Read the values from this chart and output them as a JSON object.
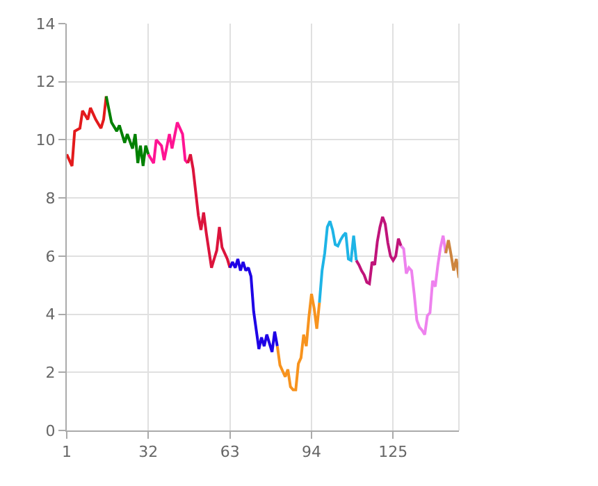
{
  "chart_data": {
    "type": "line",
    "xlim": [
      1,
      150
    ],
    "xticks": [
      1,
      32,
      63,
      94,
      125
    ],
    "ylim": [
      0,
      14
    ],
    "yticks": [
      0,
      2,
      4,
      6,
      8,
      10,
      12,
      14
    ],
    "grid": true,
    "marker": "none",
    "line_style": "solid",
    "series": [
      {
        "color": "#e31a1c",
        "x": [
          1,
          3,
          4,
          6,
          7,
          9,
          10,
          12,
          14,
          15,
          16
        ],
        "values": [
          9.5,
          9.1,
          10.3,
          10.4,
          11.0,
          10.7,
          11.1,
          10.7,
          10.4,
          10.7,
          11.5
        ]
      },
      {
        "color": "#008000",
        "x": [
          16,
          18,
          20,
          21,
          23,
          24,
          26,
          27,
          28,
          29,
          30,
          31,
          32
        ],
        "values": [
          11.5,
          10.6,
          10.3,
          10.5,
          9.9,
          10.2,
          9.7,
          10.2,
          9.2,
          9.8,
          9.1,
          9.8,
          9.5
        ]
      },
      {
        "color": "#ff1493",
        "x": [
          32,
          34,
          35,
          37,
          38,
          40,
          41,
          43,
          45,
          46,
          47
        ],
        "values": [
          9.5,
          9.2,
          10.0,
          9.8,
          9.3,
          10.2,
          9.7,
          10.6,
          10.2,
          9.3,
          9.2
        ]
      },
      {
        "color": "#dc143c",
        "x": [
          47,
          48,
          49,
          50,
          51,
          52,
          53,
          54,
          55,
          56,
          57,
          58,
          59,
          60,
          62,
          63
        ],
        "values": [
          9.2,
          9.5,
          9.0,
          8.2,
          7.4,
          6.9,
          7.5,
          6.8,
          6.2,
          5.6,
          5.9,
          6.2,
          7.0,
          6.3,
          5.9,
          5.6
        ]
      },
      {
        "color": "#1e00e6",
        "x": [
          63,
          64,
          65,
          66,
          67,
          68,
          69,
          70,
          71,
          72,
          74,
          75,
          76,
          77,
          78,
          79,
          80,
          81
        ],
        "values": [
          5.6,
          5.8,
          5.6,
          5.9,
          5.5,
          5.8,
          5.5,
          5.6,
          5.3,
          4.1,
          2.8,
          3.2,
          2.9,
          3.3,
          3.0,
          2.7,
          3.4,
          2.9
        ]
      },
      {
        "color": "#f7931e",
        "x": [
          81,
          82,
          83,
          84,
          85,
          86,
          87,
          88,
          89,
          90,
          91,
          92,
          93,
          94,
          95,
          96,
          97
        ],
        "values": [
          2.9,
          2.25,
          2.05,
          1.85,
          2.1,
          1.5,
          1.4,
          1.4,
          2.3,
          2.5,
          3.3,
          2.9,
          3.9,
          4.7,
          4.2,
          3.5,
          4.4
        ]
      },
      {
        "color": "#1eb4e6",
        "x": [
          97,
          98,
          99,
          100,
          101,
          102,
          103,
          104,
          105,
          106,
          107,
          108,
          109,
          110,
          111
        ],
        "values": [
          4.4,
          5.5,
          6.1,
          7.0,
          7.2,
          6.9,
          6.4,
          6.35,
          6.55,
          6.7,
          6.8,
          5.9,
          5.85,
          6.7,
          5.85
        ]
      },
      {
        "color": "#c0147a",
        "x": [
          111,
          112,
          113,
          114,
          115,
          116,
          117,
          118,
          119,
          120,
          121,
          122,
          123,
          124,
          125,
          126,
          127,
          128
        ],
        "values": [
          5.85,
          5.7,
          5.5,
          5.35,
          5.1,
          5.05,
          5.8,
          5.7,
          6.5,
          7.0,
          7.35,
          7.1,
          6.45,
          6.0,
          5.85,
          6.0,
          6.6,
          6.35
        ]
      },
      {
        "color": "#ee82ee",
        "x": [
          128,
          129,
          130,
          131,
          132,
          133,
          134,
          135,
          136,
          137,
          138,
          139,
          140,
          141,
          142,
          143,
          144,
          145
        ],
        "values": [
          6.35,
          6.25,
          5.4,
          5.6,
          5.5,
          4.7,
          3.8,
          3.55,
          3.45,
          3.3,
          3.95,
          4.05,
          5.15,
          4.95,
          5.7,
          6.3,
          6.7,
          6.1
        ]
      },
      {
        "color": "#cd853f",
        "x": [
          145,
          146,
          147,
          148,
          149,
          150
        ],
        "values": [
          6.1,
          6.55,
          6.05,
          5.5,
          5.9,
          5.25
        ]
      }
    ]
  }
}
